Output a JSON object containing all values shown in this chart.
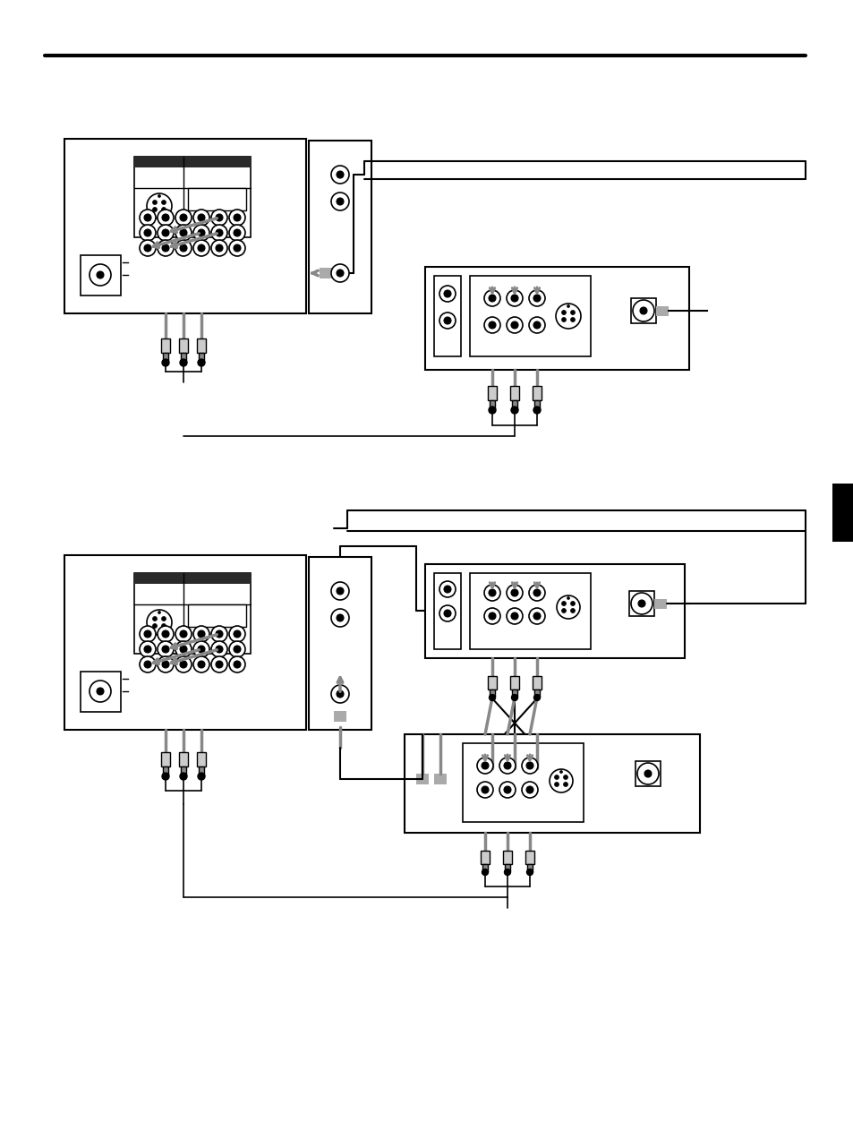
{
  "bg_color": "#ffffff",
  "lc": "#000000",
  "gc": "#888888",
  "page_width": 9.54,
  "page_height": 12.72,
  "dpi": 100
}
